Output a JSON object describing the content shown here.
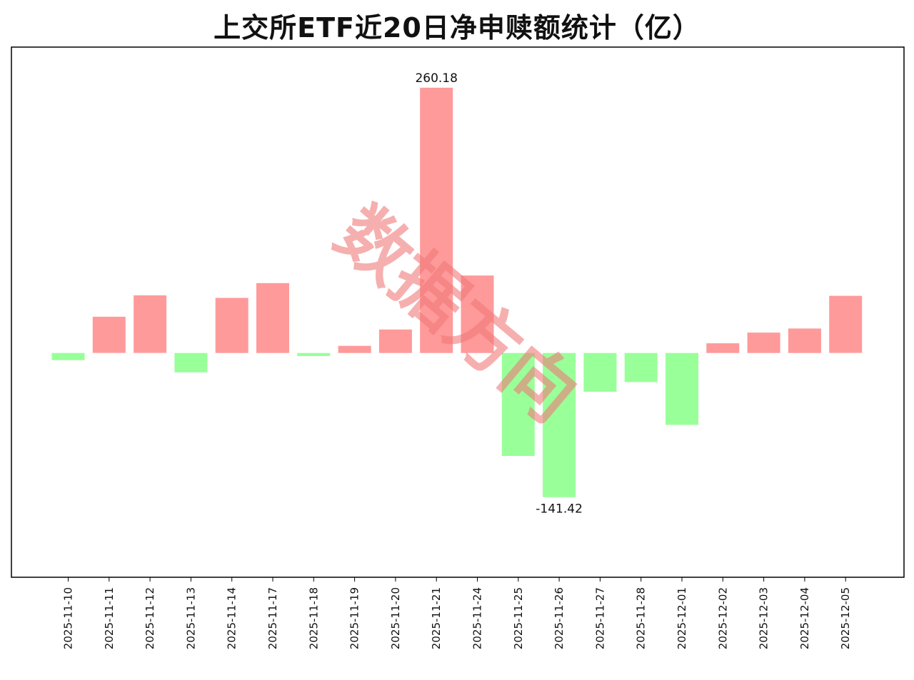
{
  "chart_data": {
    "type": "bar",
    "title": "上交所ETF近20日净申赎额统计（亿）",
    "xlabel": "",
    "ylabel": "",
    "ylim": [
      -220,
      300
    ],
    "grid": false,
    "legend": "none",
    "categories": [
      "2025-11-10",
      "2025-11-11",
      "2025-11-12",
      "2025-11-13",
      "2025-11-14",
      "2025-11-17",
      "2025-11-18",
      "2025-11-19",
      "2025-11-20",
      "2025-11-21",
      "2025-11-24",
      "2025-11-25",
      "2025-11-26",
      "2025-11-27",
      "2025-11-28",
      "2025-12-01",
      "2025-12-02",
      "2025-12-03",
      "2025-12-04",
      "2025-12-05"
    ],
    "values": [
      -7,
      35.5,
      56.5,
      -19,
      54,
      68.5,
      -3,
      7,
      23,
      260.18,
      76,
      -101,
      -141.42,
      -38,
      -28.5,
      -70.5,
      9.5,
      20,
      24,
      56
    ],
    "data_labels": [
      {
        "index": 9,
        "text": "260.18"
      },
      {
        "index": 12,
        "text": "-141.42"
      }
    ],
    "colors": {
      "positive": "#ff9a9a",
      "negative": "#99ff99"
    }
  },
  "watermark": {
    "text": "数据方向",
    "color": "#f07a7a"
  }
}
